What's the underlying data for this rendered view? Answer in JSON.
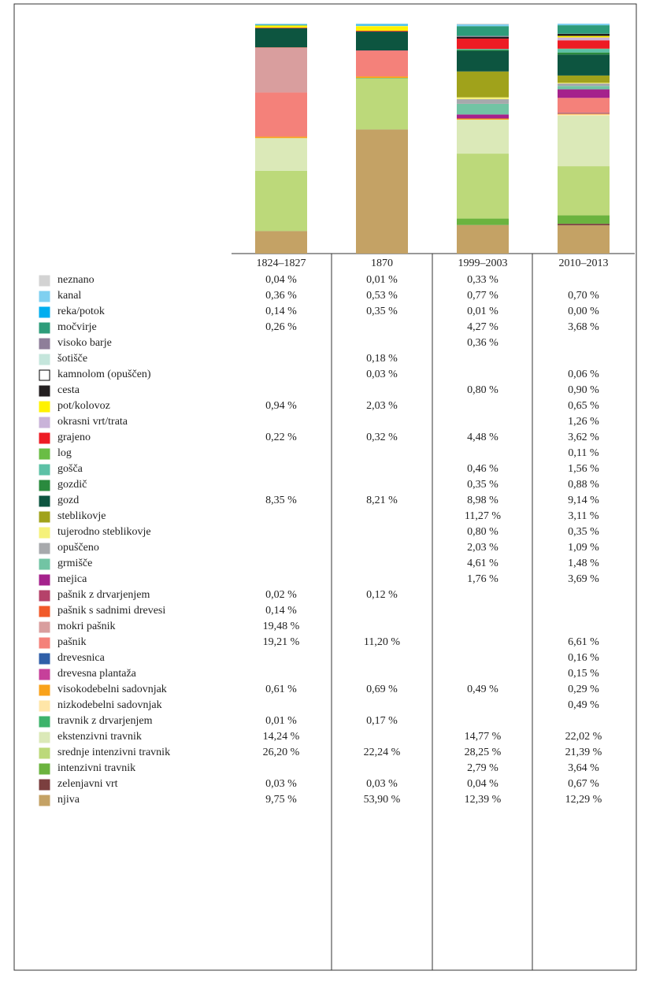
{
  "chart_data": {
    "type": "bar",
    "stacked": true,
    "categories": [
      "1824–1827",
      "1870",
      "1999–2003",
      "2010–2013"
    ],
    "ylim": [
      0,
      100
    ],
    "series": [
      {
        "name": "neznano",
        "color": "#d3d3d3",
        "values": [
          0.04,
          0.01,
          0.33,
          null
        ],
        "value_labels": [
          "0,04 %",
          "0,01 %",
          "0,33 %",
          null
        ]
      },
      {
        "name": "kanal",
        "color": "#7fd0f0",
        "values": [
          0.36,
          0.53,
          0.77,
          0.7
        ],
        "value_labels": [
          "0,36 %",
          "0,53 %",
          "0,77 %",
          "0,70 %"
        ]
      },
      {
        "name": "reka/potok",
        "color": "#00aeef",
        "values": [
          0.14,
          0.35,
          0.01,
          0.0
        ],
        "value_labels": [
          "0,14 %",
          "0,35 %",
          "0,01 %",
          "0,00 %"
        ]
      },
      {
        "name": "močvirje",
        "color": "#2e9c7a",
        "values": [
          0.26,
          null,
          4.27,
          3.68
        ],
        "value_labels": [
          "0,26 %",
          null,
          "4,27 %",
          "3,68 %"
        ]
      },
      {
        "name": "visoko barje",
        "color": "#8e7e99",
        "values": [
          null,
          null,
          0.36,
          null
        ],
        "value_labels": [
          null,
          null,
          "0,36 %",
          null
        ]
      },
      {
        "name": "šotišče",
        "color": "#c5e6dc",
        "values": [
          null,
          0.18,
          null,
          null
        ],
        "value_labels": [
          null,
          "0,18 %",
          null,
          null
        ]
      },
      {
        "name": "kamnolom (opuščen)",
        "color": "#ffffff",
        "values": [
          null,
          0.03,
          null,
          0.06
        ],
        "value_labels": [
          null,
          "0,03 %",
          null,
          "0,06 %"
        ]
      },
      {
        "name": "cesta",
        "color": "#231f20",
        "values": [
          null,
          null,
          0.8,
          0.9
        ],
        "value_labels": [
          null,
          null,
          "0,80 %",
          "0,90 %"
        ]
      },
      {
        "name": "pot/kolovoz",
        "color": "#fff200",
        "values": [
          0.94,
          2.03,
          null,
          0.65
        ],
        "value_labels": [
          "0,94 %",
          "2,03 %",
          null,
          "0,65 %"
        ]
      },
      {
        "name": "okrasni vrt/trata",
        "color": "#c9b3d9",
        "values": [
          null,
          null,
          null,
          1.26
        ],
        "value_labels": [
          null,
          null,
          null,
          "1,26 %"
        ]
      },
      {
        "name": "grajeno",
        "color": "#ed1c24",
        "values": [
          0.22,
          0.32,
          4.48,
          3.62
        ],
        "value_labels": [
          "0,22 %",
          "0,32 %",
          "4,48 %",
          "3,62 %"
        ]
      },
      {
        "name": "log",
        "color": "#6abd45",
        "values": [
          null,
          null,
          null,
          0.11
        ],
        "value_labels": [
          null,
          null,
          null,
          "0,11 %"
        ]
      },
      {
        "name": "gošča",
        "color": "#5cc1a6",
        "values": [
          null,
          null,
          0.46,
          1.56
        ],
        "value_labels": [
          null,
          null,
          "0,46 %",
          "1,56 %"
        ]
      },
      {
        "name": "gozdič",
        "color": "#2a8a3e",
        "values": [
          null,
          null,
          0.35,
          0.88
        ],
        "value_labels": [
          null,
          null,
          "0,35 %",
          "0,88 %"
        ]
      },
      {
        "name": "gozd",
        "color": "#0d5540",
        "values": [
          8.35,
          8.21,
          8.98,
          9.14
        ],
        "value_labels": [
          "8,35 %",
          "8,21 %",
          "8,98 %",
          "9,14 %"
        ]
      },
      {
        "name": "steblikovje",
        "color": "#a0a21b",
        "values": [
          null,
          null,
          11.27,
          3.11
        ],
        "value_labels": [
          null,
          null,
          "11,27 %",
          "3,11 %"
        ]
      },
      {
        "name": "tujerodno steblikovje",
        "color": "#f5f17a",
        "values": [
          null,
          null,
          0.8,
          0.35
        ],
        "value_labels": [
          null,
          null,
          "0,80 %",
          "0,35 %"
        ]
      },
      {
        "name": "opuščeno",
        "color": "#a7a9ac",
        "values": [
          null,
          null,
          2.03,
          1.09
        ],
        "value_labels": [
          null,
          null,
          "2,03 %",
          "1,09 %"
        ]
      },
      {
        "name": "grmišče",
        "color": "#72c4a4",
        "values": [
          null,
          null,
          4.61,
          1.48
        ],
        "value_labels": [
          null,
          null,
          "4,61 %",
          "1,48 %"
        ]
      },
      {
        "name": "mejica",
        "color": "#a5228c",
        "values": [
          null,
          null,
          1.76,
          3.69
        ],
        "value_labels": [
          null,
          null,
          "1,76 %",
          "3,69 %"
        ]
      },
      {
        "name": "pašnik z drvarjenjem",
        "color": "#b5426a",
        "values": [
          0.02,
          0.12,
          null,
          null
        ],
        "value_labels": [
          "0,02 %",
          "0,12 %",
          null,
          null
        ]
      },
      {
        "name": "pašnik s sadnimi drevesi",
        "color": "#f15a29",
        "values": [
          0.14,
          null,
          null,
          null
        ],
        "value_labels": [
          "0,14 %",
          null,
          null,
          null
        ]
      },
      {
        "name": "mokri pašnik",
        "color": "#d99e9e",
        "values": [
          19.48,
          null,
          null,
          null
        ],
        "value_labels": [
          "19,48 %",
          null,
          null,
          null
        ]
      },
      {
        "name": "pašnik",
        "color": "#f4817a",
        "values": [
          19.21,
          11.2,
          null,
          6.61
        ],
        "value_labels": [
          "19,21 %",
          "11,20 %",
          null,
          "6,61 %"
        ]
      },
      {
        "name": "drevesnica",
        "color": "#2f5fa8",
        "values": [
          null,
          null,
          null,
          0.16
        ],
        "value_labels": [
          null,
          null,
          null,
          "0,16 %"
        ]
      },
      {
        "name": "drevesna plantaža",
        "color": "#c6409a",
        "values": [
          null,
          null,
          null,
          0.15
        ],
        "value_labels": [
          null,
          null,
          null,
          "0,15 %"
        ]
      },
      {
        "name": "visokodebelni sadovnjak",
        "color": "#f9a21b",
        "values": [
          0.61,
          0.69,
          0.49,
          0.29
        ],
        "value_labels": [
          "0,61 %",
          "0,69 %",
          "0,49 %",
          "0,29 %"
        ]
      },
      {
        "name": "nizkodebelni sadovnjak",
        "color": "#ffe6a8",
        "values": [
          null,
          null,
          null,
          0.49
        ],
        "value_labels": [
          null,
          null,
          null,
          "0,49 %"
        ]
      },
      {
        "name": "travnik z drvarjenjem",
        "color": "#3db36b",
        "values": [
          0.01,
          0.17,
          null,
          null
        ],
        "value_labels": [
          "0,01 %",
          "0,17 %",
          null,
          null
        ]
      },
      {
        "name": "ekstenzivni travnik",
        "color": "#dbe9b8",
        "values": [
          14.24,
          null,
          14.77,
          22.02
        ],
        "value_labels": [
          "14,24 %",
          null,
          "14,77 %",
          "22,02 %"
        ]
      },
      {
        "name": "srednje intenzivni travnik",
        "color": "#bcd97a",
        "values": [
          26.2,
          22.24,
          28.25,
          21.39
        ],
        "value_labels": [
          "26,20 %",
          "22,24 %",
          "28,25 %",
          "21,39 %"
        ]
      },
      {
        "name": "intenzivni travnik",
        "color": "#6bb33f",
        "values": [
          null,
          null,
          2.79,
          3.64
        ],
        "value_labels": [
          null,
          null,
          "2,79 %",
          "3,64 %"
        ]
      },
      {
        "name": "zelenjavni vrt",
        "color": "#7b3f3f",
        "values": [
          0.03,
          0.03,
          0.04,
          0.67
        ],
        "value_labels": [
          "0,03 %",
          "0,03 %",
          "0,04 %",
          "0,67 %"
        ]
      },
      {
        "name": "njiva",
        "color": "#c4a265",
        "values": [
          9.75,
          53.9,
          12.39,
          12.29
        ],
        "value_labels": [
          "9,75 %",
          "53,90 %",
          "12,39 %",
          "12,29 %"
        ]
      }
    ]
  }
}
